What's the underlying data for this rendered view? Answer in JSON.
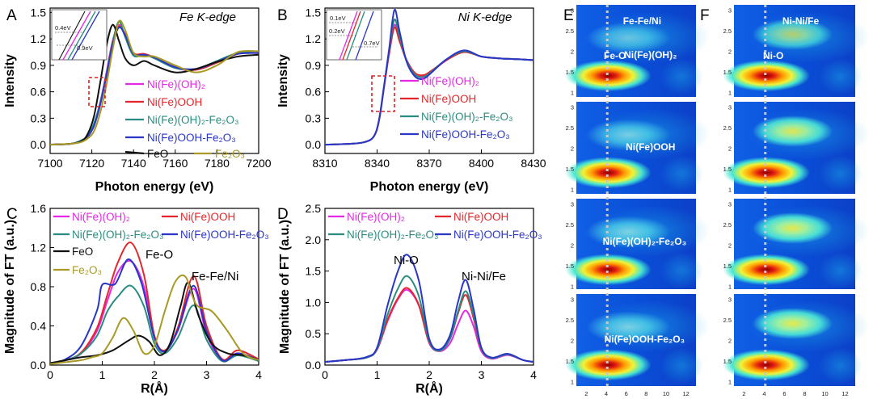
{
  "colors": {
    "magenta": "#e628e6",
    "red": "#e4262b",
    "teal": "#2a8c80",
    "blue": "#2a36c8",
    "black": "#111111",
    "olive": "#a89a24",
    "inset_dashed_box": "#e02020"
  },
  "chart_data": [
    {
      "id": "A",
      "type": "line",
      "panel_label": "A",
      "title": "Fe K-edge",
      "xlabel": "Photon energy (eV)",
      "ylabel": "Intensity",
      "xlim": [
        7100,
        7200
      ],
      "ylim": [
        -0.1,
        1.55
      ],
      "xticks": [
        "7100",
        "7120",
        "7140",
        "7160",
        "7180",
        "7200"
      ],
      "yticks": [
        "0.0",
        "0.3",
        "0.6",
        "0.9",
        "1.2",
        "1.5"
      ],
      "inset_labels": [
        "0.4eV",
        "0.9eV"
      ],
      "series": [
        {
          "name": "Ni(Fe)(OH)2",
          "label_main": "Ni(Fe)(OH)",
          "label_sub": "2",
          "color": "magenta",
          "x": [
            7100,
            7110,
            7115,
            7118,
            7121,
            7124,
            7127,
            7130,
            7133,
            7136,
            7140,
            7145,
            7150,
            7160,
            7170,
            7180,
            7190,
            7200
          ],
          "y": [
            0,
            0.01,
            0.04,
            0.09,
            0.22,
            0.48,
            0.82,
            1.18,
            1.36,
            1.23,
            1.03,
            1.03,
            0.99,
            0.87,
            0.85,
            0.94,
            1.04,
            1.04
          ]
        },
        {
          "name": "Ni(Fe)OOH",
          "label_main": "Ni(Fe)OOH",
          "label_sub": "",
          "color": "red",
          "x": [
            7100,
            7110,
            7115,
            7118,
            7121,
            7124,
            7127,
            7130,
            7133,
            7136,
            7140,
            7145,
            7150,
            7160,
            7170,
            7180,
            7190,
            7200
          ],
          "y": [
            0,
            0.01,
            0.04,
            0.09,
            0.22,
            0.46,
            0.8,
            1.16,
            1.34,
            1.25,
            1.04,
            1.03,
            0.99,
            0.88,
            0.85,
            0.93,
            1.03,
            1.04
          ]
        },
        {
          "name": "Ni(Fe)(OH)2-Fe2O3",
          "label_main": "Ni(Fe)(OH)₂-Fe₂O₃",
          "label_sub": "",
          "color": "teal",
          "x": [
            7100,
            7110,
            7115,
            7118,
            7121,
            7124,
            7127,
            7130,
            7133,
            7136,
            7140,
            7145,
            7150,
            7160,
            7170,
            7180,
            7190,
            7200
          ],
          "y": [
            0,
            0.01,
            0.05,
            0.1,
            0.24,
            0.47,
            0.8,
            1.16,
            1.4,
            1.22,
            1.01,
            1.02,
            0.98,
            0.87,
            0.86,
            0.95,
            1.04,
            1.04
          ]
        },
        {
          "name": "Ni(Fe)OOH-Fe2O3",
          "label_main": "Ni(Fe)OOH-Fe₂O₃",
          "label_sub": "",
          "color": "blue",
          "x": [
            7100,
            7110,
            7115,
            7118,
            7121,
            7124,
            7127,
            7130,
            7133,
            7136,
            7140,
            7145,
            7150,
            7160,
            7170,
            7180,
            7190,
            7200
          ],
          "y": [
            0,
            0.01,
            0.04,
            0.09,
            0.21,
            0.45,
            0.78,
            1.14,
            1.33,
            1.24,
            1.03,
            1.02,
            0.99,
            0.88,
            0.86,
            0.94,
            1.03,
            1.04
          ]
        },
        {
          "name": "FeO",
          "label_main": "FeO",
          "label_sub": "",
          "color": "black",
          "x": [
            7100,
            7110,
            7115,
            7118,
            7121,
            7124,
            7127,
            7130,
            7133,
            7136,
            7140,
            7145,
            7150,
            7160,
            7170,
            7180,
            7190,
            7200
          ],
          "y": [
            0,
            0.01,
            0.04,
            0.12,
            0.32,
            0.7,
            1.12,
            1.36,
            1.18,
            0.98,
            0.9,
            0.95,
            0.9,
            0.82,
            0.86,
            0.94,
            1.0,
            1.02
          ]
        },
        {
          "name": "Fe2O3",
          "label_main": "Fe₂O₃",
          "label_sub": "",
          "color": "olive",
          "x": [
            7100,
            7110,
            7115,
            7118,
            7121,
            7124,
            7127,
            7130,
            7133,
            7136,
            7140,
            7145,
            7150,
            7160,
            7170,
            7180,
            7190,
            7200
          ],
          "y": [
            0,
            0.01,
            0.03,
            0.07,
            0.15,
            0.36,
            0.68,
            1.08,
            1.4,
            1.3,
            1.04,
            1.0,
            1.0,
            0.9,
            0.82,
            0.9,
            1.05,
            1.06
          ]
        }
      ]
    },
    {
      "id": "B",
      "type": "line",
      "panel_label": "B",
      "title": "Ni K-edge",
      "xlabel": "Photon energy (eV)",
      "ylabel": "Intensity",
      "xlim": [
        8310,
        8430
      ],
      "ylim": [
        -0.1,
        1.55
      ],
      "xticks": [
        "8310",
        "8340",
        "8370",
        "8400",
        "8430"
      ],
      "yticks": [
        "0.0",
        "0.3",
        "0.6",
        "0.9",
        "1.2",
        "1.5"
      ],
      "inset_labels": [
        "0.1eV",
        "0.2eV",
        "0.7eV"
      ],
      "series": [
        {
          "name": "Ni(Fe)(OH)2",
          "color": "magenta",
          "x": [
            8310,
            8325,
            8333,
            8338,
            8341,
            8344,
            8347,
            8350,
            8353,
            8357,
            8362,
            8367,
            8372,
            8380,
            8390,
            8400,
            8410,
            8420,
            8430
          ],
          "y": [
            0,
            0.01,
            0.03,
            0.09,
            0.26,
            0.65,
            1.05,
            1.36,
            1.18,
            0.95,
            0.8,
            0.78,
            0.84,
            0.96,
            1.06,
            1.0,
            0.98,
            0.97,
            0.96
          ]
        },
        {
          "name": "Ni(Fe)OOH",
          "color": "red",
          "x": [
            8310,
            8325,
            8333,
            8338,
            8341,
            8344,
            8347,
            8350,
            8353,
            8357,
            8362,
            8367,
            8372,
            8380,
            8390,
            8400,
            8410,
            8420,
            8430
          ],
          "y": [
            0,
            0.01,
            0.03,
            0.09,
            0.27,
            0.66,
            1.04,
            1.33,
            1.17,
            0.96,
            0.81,
            0.79,
            0.85,
            0.96,
            1.05,
            1.0,
            0.98,
            0.97,
            0.96
          ]
        },
        {
          "name": "Ni(Fe)(OH)2-Fe2O3",
          "color": "teal",
          "x": [
            8310,
            8325,
            8333,
            8338,
            8341,
            8344,
            8347,
            8350,
            8353,
            8357,
            8362,
            8367,
            8372,
            8380,
            8390,
            8400,
            8410,
            8420,
            8430
          ],
          "y": [
            0,
            0.01,
            0.03,
            0.09,
            0.27,
            0.67,
            1.08,
            1.42,
            1.22,
            0.95,
            0.79,
            0.77,
            0.84,
            0.97,
            1.06,
            1.0,
            0.98,
            0.97,
            0.96
          ]
        },
        {
          "name": "Ni(Fe)OOH-Fe2O3",
          "color": "blue",
          "x": [
            8310,
            8325,
            8333,
            8338,
            8341,
            8344,
            8347,
            8350,
            8353,
            8357,
            8362,
            8367,
            8372,
            8380,
            8390,
            8400,
            8410,
            8420,
            8430
          ],
          "y": [
            0,
            0.01,
            0.03,
            0.09,
            0.26,
            0.66,
            1.1,
            1.53,
            1.28,
            0.94,
            0.77,
            0.75,
            0.83,
            0.97,
            1.07,
            1.0,
            0.98,
            0.97,
            0.96
          ]
        }
      ]
    },
    {
      "id": "C",
      "type": "line",
      "panel_label": "C",
      "xlabel": "R(Å)",
      "ylabel": "Magnitude of FT (a.u.)",
      "xlim": [
        0,
        4
      ],
      "ylim": [
        0,
        1.6
      ],
      "xticks": [
        "0",
        "1",
        "2",
        "3",
        "4"
      ],
      "yticks": [
        "0.0",
        "0.4",
        "0.8",
        "1.2",
        "1.6"
      ],
      "annotations": [
        "Fe-O",
        "Fe-Fe/Ni"
      ],
      "series": [
        {
          "name": "Ni(Fe)(OH)2",
          "color": "magenta",
          "x": [
            0,
            0.3,
            0.6,
            0.9,
            1.1,
            1.3,
            1.55,
            1.8,
            2.0,
            2.2,
            2.45,
            2.75,
            3.0,
            3.3,
            3.6,
            4.0
          ],
          "y": [
            0.02,
            0.05,
            0.12,
            0.35,
            0.66,
            0.95,
            1.06,
            0.8,
            0.28,
            0.14,
            0.35,
            0.78,
            0.32,
            0.05,
            0.12,
            0.05
          ]
        },
        {
          "name": "Ni(Fe)OOH",
          "color": "red",
          "x": [
            0,
            0.3,
            0.6,
            0.9,
            1.1,
            1.3,
            1.55,
            1.8,
            2.0,
            2.2,
            2.45,
            2.75,
            3.0,
            3.3,
            3.6,
            4.0
          ],
          "y": [
            0.02,
            0.05,
            0.13,
            0.38,
            0.72,
            1.05,
            1.25,
            0.92,
            0.3,
            0.15,
            0.38,
            0.91,
            0.4,
            0.06,
            0.15,
            0.06
          ]
        },
        {
          "name": "Ni(Fe)(OH)2-Fe2O3",
          "color": "teal",
          "x": [
            0,
            0.3,
            0.6,
            0.9,
            1.1,
            1.3,
            1.55,
            1.8,
            2.0,
            2.2,
            2.45,
            2.75,
            3.0,
            3.3,
            3.6,
            4.0
          ],
          "y": [
            0.02,
            0.05,
            0.12,
            0.3,
            0.55,
            0.7,
            0.81,
            0.6,
            0.22,
            0.12,
            0.28,
            0.61,
            0.26,
            0.04,
            0.1,
            0.04
          ]
        },
        {
          "name": "Ni(Fe)OOH-Fe2O3",
          "color": "blue",
          "x": [
            0,
            0.3,
            0.6,
            0.9,
            1.0,
            1.25,
            1.5,
            1.75,
            2.0,
            2.2,
            2.45,
            2.75,
            3.0,
            3.3,
            3.6,
            4.0
          ],
          "y": [
            0.02,
            0.06,
            0.2,
            0.56,
            0.82,
            0.83,
            1.08,
            0.84,
            0.28,
            0.14,
            0.36,
            0.81,
            0.35,
            0.05,
            0.12,
            0.05
          ]
        },
        {
          "name": "FeO",
          "color": "black",
          "x": [
            0,
            0.3,
            0.6,
            0.9,
            1.2,
            1.5,
            1.7,
            1.9,
            2.1,
            2.3,
            2.5,
            2.65,
            2.85,
            3.1,
            3.4,
            3.7,
            4.0
          ],
          "y": [
            0.02,
            0.05,
            0.08,
            0.1,
            0.15,
            0.25,
            0.3,
            0.24,
            0.1,
            0.22,
            0.6,
            0.84,
            0.5,
            0.22,
            0.12,
            0.1,
            0.05
          ]
        },
        {
          "name": "Fe2O3",
          "color": "olive",
          "x": [
            0,
            0.3,
            0.6,
            0.8,
            1.0,
            1.2,
            1.4,
            1.6,
            1.8,
            2.0,
            2.2,
            2.4,
            2.6,
            2.8,
            3.1,
            3.4,
            3.7,
            4.0
          ],
          "y": [
            0.01,
            0.03,
            0.05,
            0.08,
            0.12,
            0.28,
            0.48,
            0.35,
            0.12,
            0.2,
            0.55,
            0.85,
            0.9,
            0.62,
            0.55,
            0.35,
            0.12,
            0.05
          ]
        }
      ]
    },
    {
      "id": "D",
      "type": "line",
      "panel_label": "D",
      "xlabel": "R(Å)",
      "ylabel": "Magnitude of FT (a.u.)",
      "xlim": [
        0,
        4
      ],
      "ylim": [
        0,
        2.5
      ],
      "xticks": [
        "0",
        "1",
        "2",
        "3",
        "4"
      ],
      "yticks": [
        "0.0",
        "0.5",
        "1.0",
        "1.5",
        "2.0",
        "2.5"
      ],
      "annotations": [
        "Ni-O",
        "Ni-Ni/Fe"
      ],
      "series": [
        {
          "name": "Ni(Fe)(OH)2",
          "color": "magenta",
          "x": [
            0,
            0.4,
            0.8,
            1.0,
            1.2,
            1.4,
            1.58,
            1.8,
            2.0,
            2.2,
            2.4,
            2.55,
            2.7,
            2.85,
            3.0,
            3.2,
            3.5,
            3.8,
            4.0
          ],
          "y": [
            0.05,
            0.08,
            0.12,
            0.25,
            0.7,
            1.05,
            1.2,
            0.95,
            0.35,
            0.22,
            0.35,
            0.65,
            0.87,
            0.62,
            0.22,
            0.1,
            0.16,
            0.08,
            0.05
          ]
        },
        {
          "name": "Ni(Fe)OOH",
          "color": "red",
          "x": [
            0,
            0.4,
            0.8,
            1.0,
            1.2,
            1.4,
            1.58,
            1.8,
            2.0,
            2.2,
            2.4,
            2.55,
            2.7,
            2.85,
            3.0,
            3.2,
            3.5,
            3.8,
            4.0
          ],
          "y": [
            0.05,
            0.08,
            0.12,
            0.25,
            0.72,
            1.07,
            1.23,
            0.96,
            0.36,
            0.23,
            0.42,
            0.82,
            1.12,
            0.75,
            0.25,
            0.11,
            0.17,
            0.08,
            0.05
          ]
        },
        {
          "name": "Ni(Fe)(OH)2-Fe2O3",
          "color": "teal",
          "x": [
            0,
            0.4,
            0.8,
            1.0,
            1.2,
            1.4,
            1.58,
            1.8,
            2.0,
            2.2,
            2.4,
            2.55,
            2.7,
            2.85,
            3.0,
            3.2,
            3.5,
            3.8,
            4.0
          ],
          "y": [
            0.05,
            0.08,
            0.12,
            0.26,
            0.8,
            1.22,
            1.42,
            1.1,
            0.38,
            0.23,
            0.42,
            0.85,
            1.18,
            0.8,
            0.26,
            0.11,
            0.17,
            0.08,
            0.05
          ]
        },
        {
          "name": "Ni(Fe)OOH-Fe2O3",
          "color": "blue",
          "x": [
            0,
            0.4,
            0.8,
            1.0,
            1.2,
            1.4,
            1.58,
            1.8,
            2.0,
            2.2,
            2.4,
            2.55,
            2.7,
            2.85,
            3.0,
            3.2,
            3.5,
            3.8,
            4.0
          ],
          "y": [
            0.05,
            0.08,
            0.13,
            0.28,
            0.95,
            1.5,
            1.76,
            1.35,
            0.42,
            0.25,
            0.48,
            1.0,
            1.36,
            0.9,
            0.28,
            0.12,
            0.18,
            0.08,
            0.05
          ]
        }
      ]
    },
    {
      "id": "E",
      "type": "heatmap",
      "panel_label": "E",
      "title": "Fe-Fe/Ni",
      "peak_label": "Fe-O",
      "xticks": [
        "2",
        "4",
        "6",
        "8",
        "10",
        "12"
      ],
      "yticks": [
        "1",
        "1.5",
        "2",
        "2.5",
        "3"
      ],
      "subpanels": [
        {
          "label": "Ni(Fe)(OH)2",
          "main": "Ni(Fe)(OH)",
          "sub": "2",
          "second_peak": 0.3
        },
        {
          "label": "Ni(Fe)OOH",
          "main": "Ni(Fe)OOH",
          "sub": "",
          "second_peak": 0.38
        },
        {
          "label": "Ni(Fe)(OH)2-Fe2O3",
          "main": "Ni(Fe)(OH)₂-Fe₂O₃",
          "sub": "",
          "second_peak": 0.42
        },
        {
          "label": "Ni(Fe)OOH-Fe2O3",
          "main": "Ni(Fe)OOH-Fe₂O₃",
          "sub": "",
          "second_peak": 0.4
        }
      ]
    },
    {
      "id": "F",
      "type": "heatmap",
      "panel_label": "F",
      "title": "Ni-Ni/Fe",
      "peak_label": "Ni-O",
      "xticks": [
        "2",
        "4",
        "6",
        "8",
        "10",
        "12"
      ],
      "yticks": [
        "1",
        "1.5",
        "2",
        "2.5",
        "3"
      ],
      "subpanels": [
        {
          "second_peak": 0.42
        },
        {
          "second_peak": 0.62
        },
        {
          "second_peak": 0.66
        },
        {
          "second_peak": 0.7
        }
      ]
    }
  ]
}
